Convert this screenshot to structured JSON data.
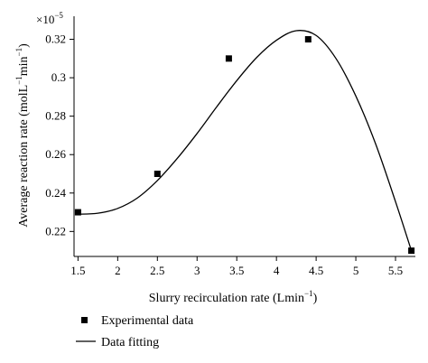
{
  "chart_data": {
    "type": "scatter",
    "xlabel": "Slurry recirculation rate (Lmin",
    "xlabel_sup": "−1",
    "xlabel_tail": ")",
    "ylabel_parts": {
      "main": "Average reaction rate (molL",
      "sup1": "−1",
      "mid": "min",
      "sup2": "−1",
      "tail": ")"
    },
    "y_multiplier": "×10",
    "y_multiplier_exp": "−5",
    "xlim": [
      1.45,
      5.75
    ],
    "ylim": [
      0.207,
      0.332
    ],
    "x_ticks": [
      "1.5",
      "2",
      "2.5",
      "3",
      "3.5",
      "4",
      "4.5",
      "5",
      "5.5"
    ],
    "y_ticks": [
      "0.22",
      "0.24",
      "0.26",
      "0.28",
      "0.3",
      "0.32"
    ],
    "series": [
      {
        "name": "Experimental data",
        "kind": "markers",
        "marker": "square",
        "color": "#000000",
        "points": [
          {
            "x": 1.5,
            "y": 0.23
          },
          {
            "x": 2.5,
            "y": 0.25
          },
          {
            "x": 3.4,
            "y": 0.31
          },
          {
            "x": 4.4,
            "y": 0.32
          },
          {
            "x": 5.7,
            "y": 0.21
          }
        ]
      },
      {
        "name": "Data fitting",
        "kind": "line",
        "color": "#000000",
        "points": [
          {
            "x": 1.5,
            "y": 0.229
          },
          {
            "x": 1.75,
            "y": 0.2295
          },
          {
            "x": 2.0,
            "y": 0.232
          },
          {
            "x": 2.25,
            "y": 0.2375
          },
          {
            "x": 2.5,
            "y": 0.2465
          },
          {
            "x": 2.75,
            "y": 0.258
          },
          {
            "x": 3.0,
            "y": 0.271
          },
          {
            "x": 3.25,
            "y": 0.285
          },
          {
            "x": 3.5,
            "y": 0.2985
          },
          {
            "x": 3.75,
            "y": 0.3105
          },
          {
            "x": 4.0,
            "y": 0.3195
          },
          {
            "x": 4.25,
            "y": 0.3245
          },
          {
            "x": 4.5,
            "y": 0.322
          },
          {
            "x": 4.75,
            "y": 0.31
          },
          {
            "x": 5.0,
            "y": 0.2905
          },
          {
            "x": 5.25,
            "y": 0.2655
          },
          {
            "x": 5.5,
            "y": 0.2355
          },
          {
            "x": 5.7,
            "y": 0.21
          }
        ]
      }
    ],
    "legend_position": "below"
  }
}
